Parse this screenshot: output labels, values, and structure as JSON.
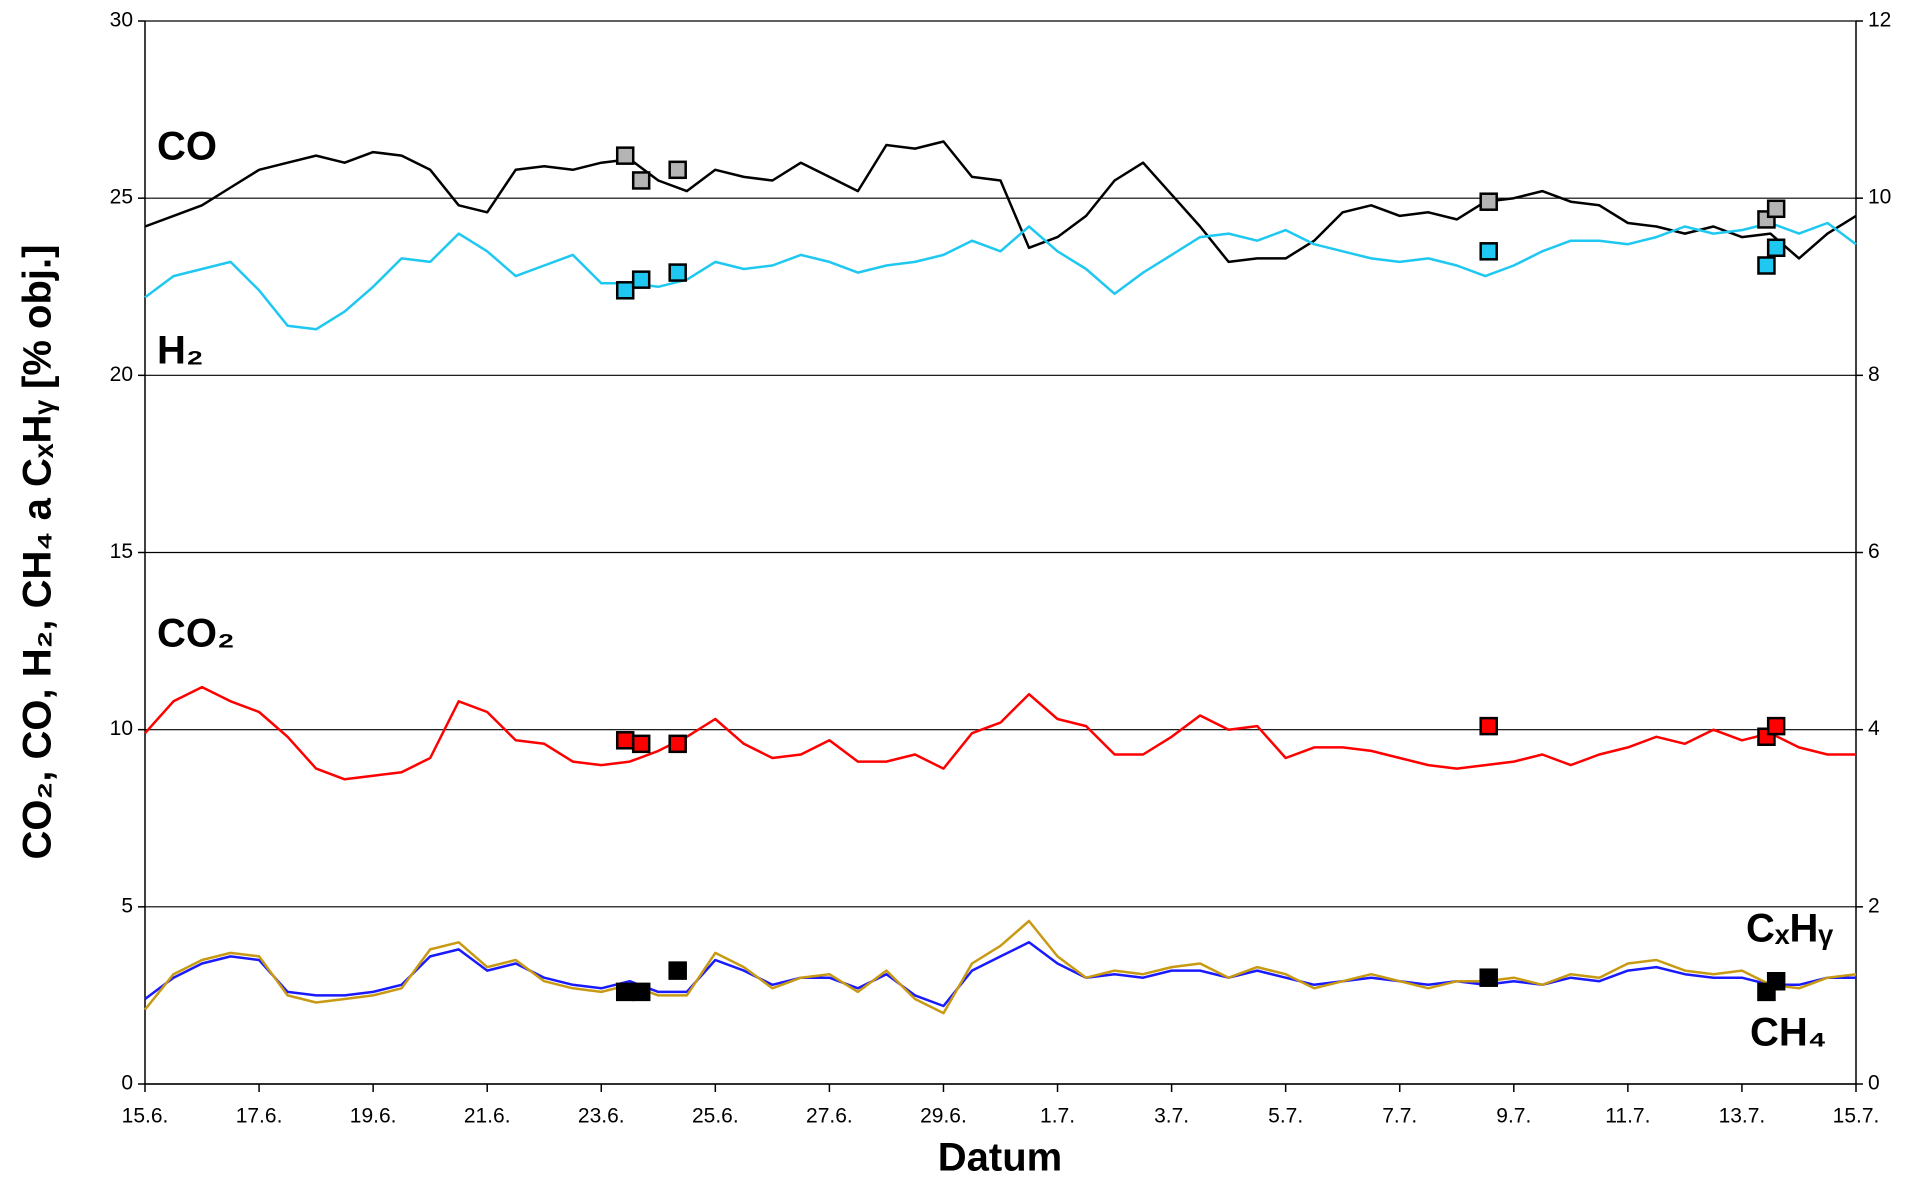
{
  "chart_data": {
    "type": "line",
    "ylabel": "CO₂, CO, H₂, CH₄ a CₓHᵧ [% obj.]",
    "xlabel": "Datum",
    "xlim": [
      0,
      30
    ],
    "xticks": [
      {
        "value": 0,
        "label": "15.6."
      },
      {
        "value": 2,
        "label": "17.6."
      },
      {
        "value": 4,
        "label": "19.6."
      },
      {
        "value": 6,
        "label": "21.6."
      },
      {
        "value": 8,
        "label": "23.6."
      },
      {
        "value": 10,
        "label": "25.6."
      },
      {
        "value": 12,
        "label": "27.6."
      },
      {
        "value": 14,
        "label": "29.6."
      },
      {
        "value": 16,
        "label": "1.7."
      },
      {
        "value": 18,
        "label": "3.7."
      },
      {
        "value": 20,
        "label": "5.7."
      },
      {
        "value": 22,
        "label": "7.7."
      },
      {
        "value": 24,
        "label": "9.7."
      },
      {
        "value": 26,
        "label": "11.7."
      },
      {
        "value": 28,
        "label": "13.7."
      },
      {
        "value": 30,
        "label": "15.7."
      }
    ],
    "ylim": [
      0,
      30
    ],
    "yticks": [
      0,
      5,
      10,
      15,
      20,
      25,
      30
    ],
    "y2lim": [
      0,
      12
    ],
    "y2ticks": [
      0,
      2,
      4,
      6,
      8,
      10,
      12
    ],
    "grid": true,
    "x": [
      0,
      0.5,
      1,
      1.5,
      2,
      2.5,
      3,
      3.5,
      4,
      4.5,
      5,
      5.5,
      6,
      6.5,
      7,
      7.5,
      8,
      8.5,
      9,
      9.5,
      10,
      10.5,
      11,
      11.5,
      12,
      12.5,
      13,
      13.5,
      14,
      14.5,
      15,
      15.5,
      16,
      16.5,
      17,
      17.5,
      18,
      18.5,
      19,
      19.5,
      20,
      20.5,
      21,
      21.5,
      22,
      22.5,
      23,
      23.5,
      24,
      24.5,
      25,
      25.5,
      26,
      26.5,
      27,
      27.5,
      28,
      28.5,
      29,
      29.5,
      30
    ],
    "series": [
      {
        "name": "CO",
        "color": "#000000",
        "values": [
          24.2,
          24.5,
          24.8,
          25.3,
          25.8,
          26.0,
          26.2,
          26.0,
          26.3,
          26.2,
          25.8,
          24.8,
          24.6,
          25.8,
          25.9,
          25.8,
          26.0,
          26.1,
          25.5,
          25.2,
          25.8,
          25.6,
          25.5,
          26.0,
          25.6,
          25.2,
          26.5,
          26.4,
          26.6,
          25.6,
          25.5,
          23.6,
          23.9,
          24.5,
          25.5,
          26.0,
          25.1,
          24.2,
          23.2,
          23.3,
          23.3,
          23.8,
          24.6,
          24.8,
          24.5,
          24.6,
          24.4,
          24.9,
          25.0,
          25.2,
          24.9,
          24.8,
          24.3,
          24.2,
          24.0,
          24.2,
          23.9,
          24.0,
          23.3,
          24.0,
          24.5
        ]
      },
      {
        "name": "H₂",
        "color": "#1ec8f0",
        "values": [
          22.2,
          22.8,
          23.0,
          23.2,
          22.4,
          21.4,
          21.3,
          21.8,
          22.5,
          23.3,
          23.2,
          24.0,
          23.5,
          22.8,
          23.1,
          23.4,
          22.6,
          22.6,
          22.5,
          22.7,
          23.2,
          23.0,
          23.1,
          23.4,
          23.2,
          22.9,
          23.1,
          23.2,
          23.4,
          23.8,
          23.5,
          24.2,
          23.5,
          23.0,
          22.3,
          22.9,
          23.4,
          23.9,
          24.0,
          23.8,
          24.1,
          23.7,
          23.5,
          23.3,
          23.2,
          23.3,
          23.1,
          22.8,
          23.1,
          23.5,
          23.8,
          23.8,
          23.7,
          23.9,
          24.2,
          24.0,
          24.1,
          24.3,
          24.0,
          24.3,
          23.7
        ]
      },
      {
        "name": "CO₂",
        "color": "#ff0000",
        "values": [
          9.9,
          10.8,
          11.2,
          10.8,
          10.5,
          9.8,
          8.9,
          8.6,
          8.7,
          8.8,
          9.2,
          10.8,
          10.5,
          9.7,
          9.6,
          9.1,
          9.0,
          9.1,
          9.4,
          9.8,
          10.3,
          9.6,
          9.2,
          9.3,
          9.7,
          9.1,
          9.1,
          9.3,
          8.9,
          9.9,
          10.2,
          11.0,
          10.3,
          10.1,
          9.3,
          9.3,
          9.8,
          10.4,
          10.0,
          10.1,
          9.2,
          9.5,
          9.5,
          9.4,
          9.2,
          9.0,
          8.9,
          9.0,
          9.1,
          9.3,
          9.0,
          9.3,
          9.5,
          9.8,
          9.6,
          10.0,
          9.7,
          9.9,
          9.5,
          9.3,
          9.3
        ]
      },
      {
        "name": "CH₄",
        "color": "#1a1aff",
        "values": [
          2.4,
          3.0,
          3.4,
          3.6,
          3.5,
          2.6,
          2.5,
          2.5,
          2.6,
          2.8,
          3.6,
          3.8,
          3.2,
          3.4,
          3.0,
          2.8,
          2.7,
          2.9,
          2.6,
          2.6,
          3.5,
          3.2,
          2.8,
          3.0,
          3.0,
          2.7,
          3.1,
          2.5,
          2.2,
          3.2,
          3.6,
          4.0,
          3.4,
          3.0,
          3.1,
          3.0,
          3.2,
          3.2,
          3.0,
          3.2,
          3.0,
          2.8,
          2.9,
          3.0,
          2.9,
          2.8,
          2.9,
          2.8,
          2.9,
          2.8,
          3.0,
          2.9,
          3.2,
          3.3,
          3.1,
          3.0,
          3.0,
          2.8,
          2.8,
          3.0,
          3.0
        ]
      },
      {
        "name": "CₓHᵧ",
        "color": "#c89a14",
        "values": [
          2.1,
          3.1,
          3.5,
          3.7,
          3.6,
          2.5,
          2.3,
          2.4,
          2.5,
          2.7,
          3.8,
          4.0,
          3.3,
          3.5,
          2.9,
          2.7,
          2.6,
          2.8,
          2.5,
          2.5,
          3.7,
          3.3,
          2.7,
          3.0,
          3.1,
          2.6,
          3.2,
          2.4,
          2.0,
          3.4,
          3.9,
          4.6,
          3.6,
          3.0,
          3.2,
          3.1,
          3.3,
          3.4,
          3.0,
          3.3,
          3.1,
          2.7,
          2.9,
          3.1,
          2.9,
          2.7,
          2.9,
          2.9,
          3.0,
          2.8,
          3.1,
          3.0,
          3.4,
          3.5,
          3.2,
          3.1,
          3.2,
          2.8,
          2.7,
          3.0,
          3.1
        ]
      },
      {
        "marker": "square",
        "color": "#b4b4b4",
        "x": [
          8.42,
          8.7,
          9.34,
          23.56,
          28.43,
          28.6
        ],
        "values": [
          26.2,
          25.5,
          25.8,
          24.9,
          24.4,
          24.7
        ]
      },
      {
        "marker": "square",
        "color": "#1ec8f0",
        "x": [
          8.42,
          8.7,
          9.34,
          23.56,
          28.43,
          28.6
        ],
        "values": [
          22.4,
          22.7,
          22.9,
          23.5,
          23.1,
          23.6
        ]
      },
      {
        "marker": "square",
        "color": "#ff0000",
        "x": [
          8.42,
          8.7,
          9.34,
          23.56,
          28.43,
          28.6
        ],
        "values": [
          9.7,
          9.6,
          9.6,
          10.1,
          9.8,
          10.1
        ]
      },
      {
        "marker": "square",
        "color": "#000000",
        "x": [
          8.42,
          8.7,
          9.34,
          23.56,
          28.43,
          28.6
        ],
        "values": [
          2.6,
          2.6,
          3.2,
          3.0,
          2.6,
          2.9
        ]
      }
    ]
  }
}
